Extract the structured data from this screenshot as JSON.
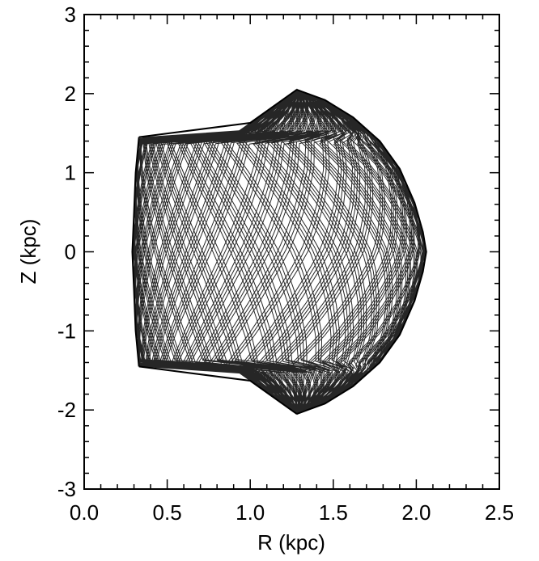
{
  "chart_data": {
    "type": "line",
    "xlabel": "R (kpc)",
    "ylabel": "Z (kpc)",
    "xlim": [
      0.0,
      2.5
    ],
    "ylim": [
      -3,
      3
    ],
    "xticks": [
      "0.0",
      "0.5",
      "1.0",
      "1.5",
      "2.0",
      "2.5"
    ],
    "yticks": [
      "-3",
      "-2",
      "-1",
      "0",
      "1",
      "2",
      "3"
    ],
    "grid": false,
    "series": [
      {
        "description": "single orbit trajectory in the meridional plane filling a bounded region",
        "envelope_outer": {
          "x": [
            1.28,
            1.45,
            1.62,
            1.78,
            1.9,
            1.99,
            2.04,
            2.06,
            2.04,
            1.99,
            1.9,
            1.78,
            1.62,
            1.45,
            1.28
          ],
          "y": [
            2.05,
            1.92,
            1.7,
            1.4,
            1.05,
            0.62,
            0.25,
            0.0,
            -0.25,
            -0.62,
            -1.05,
            -1.4,
            -1.7,
            -1.92,
            -2.05
          ]
        },
        "envelope_inner": {
          "x": [
            0.33,
            0.31,
            0.3,
            0.29,
            0.3,
            0.31,
            0.33
          ],
          "y": [
            1.45,
            1.0,
            0.5,
            0.0,
            -0.5,
            -1.0,
            -1.45
          ]
        },
        "corner_points": {
          "x": [
            0.33,
            1.0,
            1.28,
            1.28,
            1.0,
            0.33
          ],
          "y": [
            1.45,
            1.63,
            2.05,
            -2.05,
            -1.63,
            -1.45
          ]
        }
      }
    ]
  }
}
